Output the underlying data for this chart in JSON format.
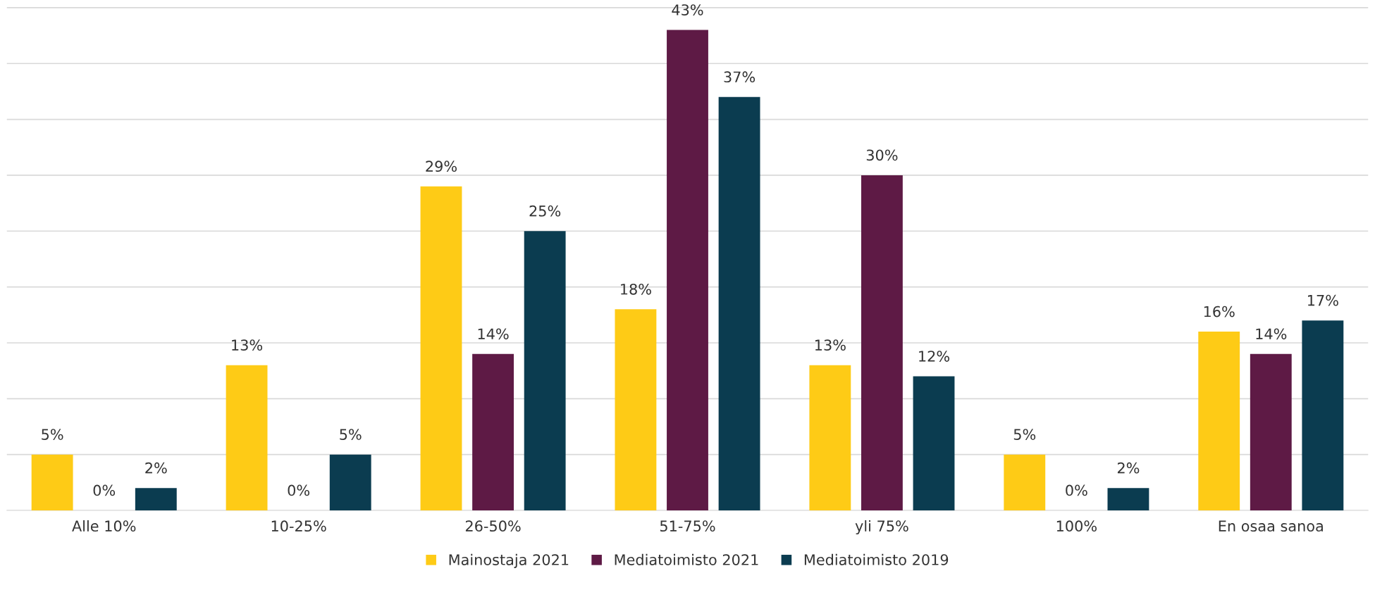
{
  "chart_data": {
    "type": "bar",
    "categories": [
      "Alle 10%",
      "10-25%",
      "26-50%",
      "51-75%",
      "yli 75%",
      "100%",
      "En osaa sanoa"
    ],
    "series": [
      {
        "name": "Mainostaja 2021",
        "color": "#fecb16",
        "values": [
          5,
          13,
          29,
          18,
          13,
          5,
          16
        ],
        "value_labels": [
          "5%",
          "13%",
          "29%",
          "18%",
          "13%",
          "5%",
          "16%"
        ]
      },
      {
        "name": "Mediatoimisto 2021",
        "color": "#5e1a45",
        "values": [
          0,
          0,
          14,
          43,
          30,
          0,
          14
        ],
        "value_labels": [
          "0%",
          "0%",
          "14%",
          "43%",
          "30%",
          "0%",
          "14%"
        ]
      },
      {
        "name": "Mediatoimisto 2019",
        "color": "#0b3c50",
        "values": [
          2,
          5,
          25,
          37,
          12,
          2,
          17
        ],
        "value_labels": [
          "2%",
          "5%",
          "25%",
          "37%",
          "12%",
          "2%",
          "17%"
        ]
      }
    ],
    "tick_labels": "x",
    "grid": "y",
    "legend": "bottom"
  }
}
